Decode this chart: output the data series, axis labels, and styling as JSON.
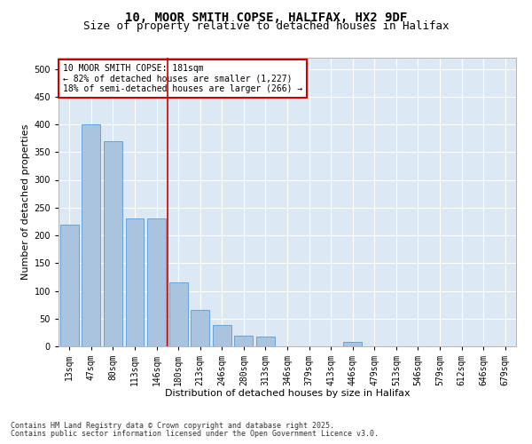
{
  "title1": "10, MOOR SMITH COPSE, HALIFAX, HX2 9DF",
  "title2": "Size of property relative to detached houses in Halifax",
  "xlabel": "Distribution of detached houses by size in Halifax",
  "ylabel": "Number of detached properties",
  "categories": [
    "13sqm",
    "47sqm",
    "80sqm",
    "113sqm",
    "146sqm",
    "180sqm",
    "213sqm",
    "246sqm",
    "280sqm",
    "313sqm",
    "346sqm",
    "379sqm",
    "413sqm",
    "446sqm",
    "479sqm",
    "513sqm",
    "546sqm",
    "579sqm",
    "612sqm",
    "646sqm",
    "679sqm"
  ],
  "values": [
    220,
    400,
    370,
    230,
    230,
    115,
    65,
    38,
    20,
    18,
    0,
    0,
    0,
    8,
    0,
    0,
    0,
    0,
    0,
    0,
    0
  ],
  "bar_color": "#aac4e0",
  "bar_edge_color": "#5b9bd5",
  "bg_color": "#dce9f5",
  "grid_color": "#ffffff",
  "vline_color": "#cc0000",
  "annotation_text": "10 MOOR SMITH COPSE: 181sqm\n← 82% of detached houses are smaller (1,227)\n18% of semi-detached houses are larger (266) →",
  "annotation_box_color": "#cc0000",
  "ylim": [
    0,
    520
  ],
  "yticks": [
    0,
    50,
    100,
    150,
    200,
    250,
    300,
    350,
    400,
    450,
    500
  ],
  "footer1": "Contains HM Land Registry data © Crown copyright and database right 2025.",
  "footer2": "Contains public sector information licensed under the Open Government Licence v3.0.",
  "title1_fontsize": 10,
  "title2_fontsize": 9,
  "axis_label_fontsize": 8,
  "tick_fontsize": 7,
  "annotation_fontsize": 7,
  "footer_fontsize": 6
}
